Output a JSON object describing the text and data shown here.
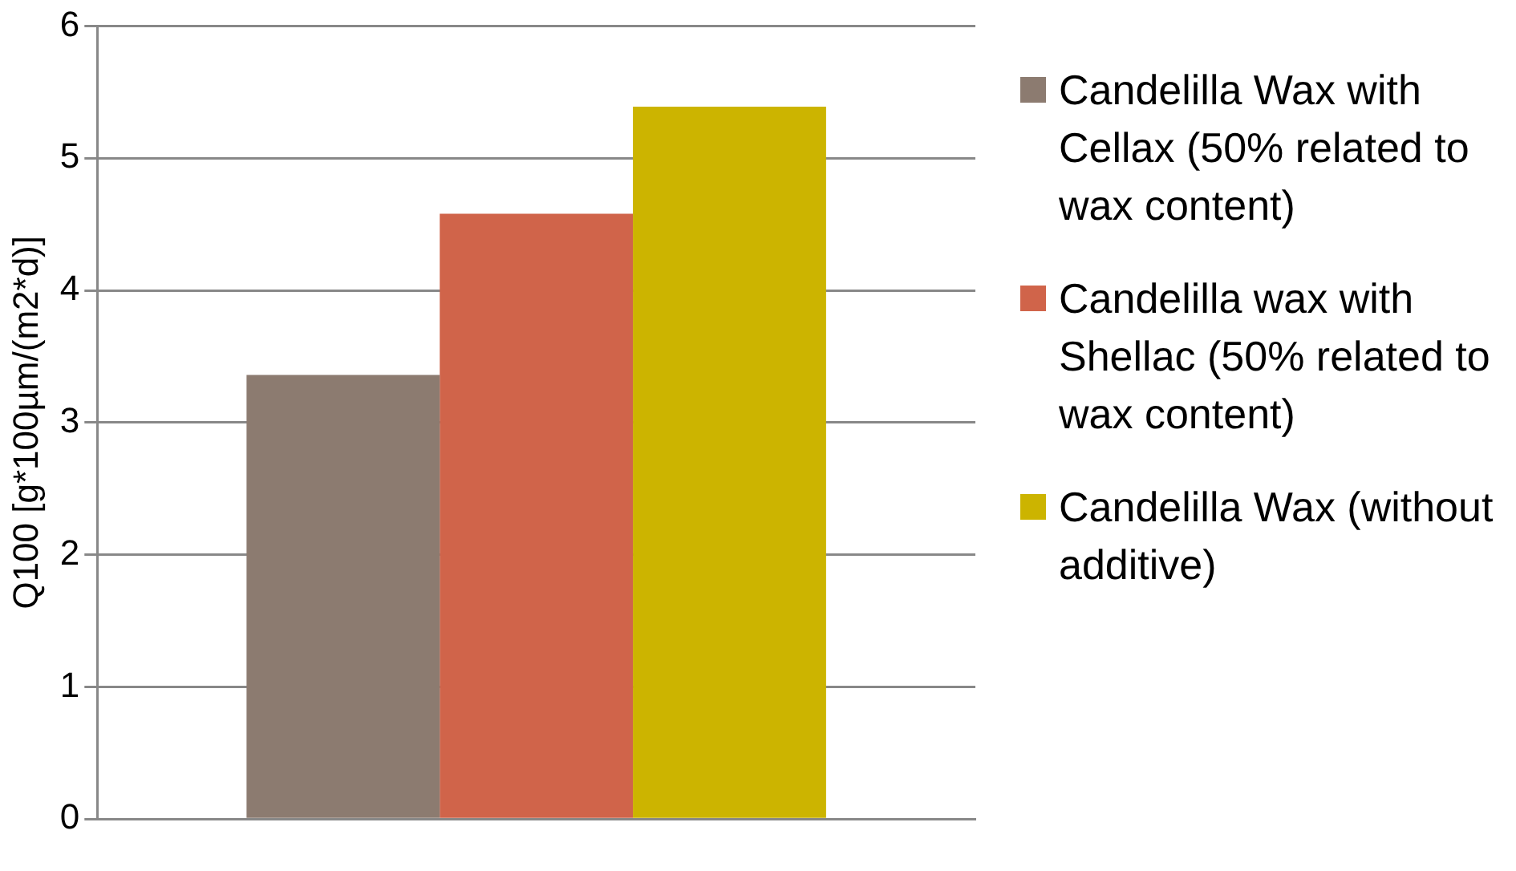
{
  "chart_data": {
    "type": "bar",
    "ylabel": "Q100 [g*100µm/(m2*d)]",
    "categories": [
      null
    ],
    "series": [
      {
        "name": "Candelilla Wax with Cellax (50% related to wax content)",
        "color": "#8c7b70",
        "values": [
          3.36
        ]
      },
      {
        "name": "Candelilla wax with Shellac (50% related to wax content)",
        "color": "#d0644a",
        "values": [
          4.58
        ]
      },
      {
        "name": "Candelilla Wax (without additive)",
        "color": "#ccb400",
        "values": [
          5.39
        ]
      }
    ],
    "ylim": [
      0,
      6
    ],
    "yticks": [
      0,
      1,
      2,
      3,
      4,
      5,
      6
    ],
    "grid": "y",
    "legend": "right"
  }
}
